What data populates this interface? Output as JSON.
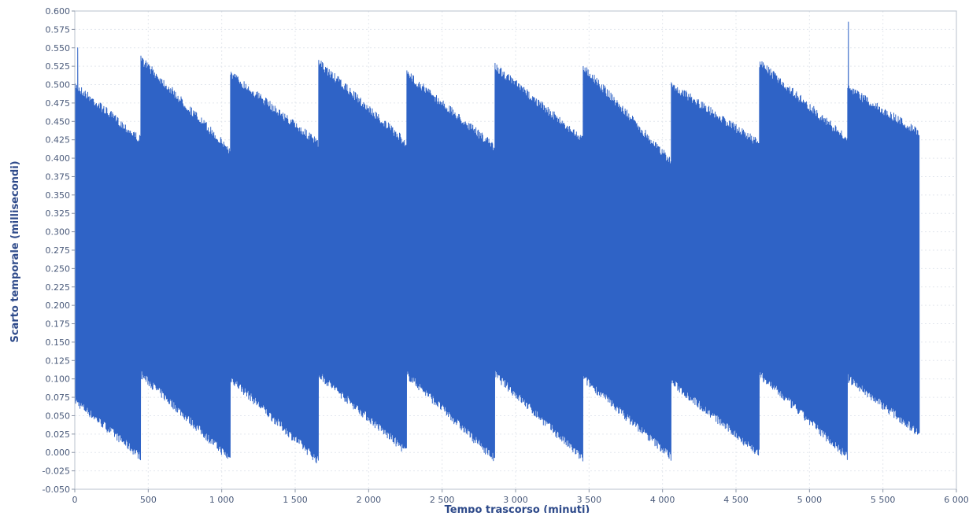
{
  "chart_data": {
    "type": "line",
    "title": "",
    "xlabel": "Tempo trascorso (minuti)",
    "ylabel": "Scarto temporale (millisecondi)",
    "xlim": [
      0,
      6000
    ],
    "ylim": [
      -0.05,
      0.6
    ],
    "x_ticks": [
      0,
      500,
      1000,
      1500,
      2000,
      2500,
      3000,
      3500,
      4000,
      4500,
      5000,
      5500,
      6000
    ],
    "x_tick_labels": [
      "0",
      "500",
      "1 000",
      "1 500",
      "2 000",
      "2 500",
      "3 000",
      "3 500",
      "4 000",
      "4 500",
      "5 000",
      "5 500",
      "6 000"
    ],
    "y_ticks": [
      -0.05,
      -0.025,
      0,
      0.025,
      0.05,
      0.075,
      0.1,
      0.125,
      0.15,
      0.175,
      0.2,
      0.225,
      0.25,
      0.275,
      0.3,
      0.325,
      0.35,
      0.375,
      0.4,
      0.425,
      0.45,
      0.475,
      0.5,
      0.525,
      0.55,
      0.575,
      0.6
    ],
    "y_tick_labels": [
      "-0.050",
      "-0.025",
      "0.000",
      "0.025",
      "0.050",
      "0.075",
      "0.100",
      "0.125",
      "0.150",
      "0.175",
      "0.200",
      "0.225",
      "0.250",
      "0.275",
      "0.300",
      "0.325",
      "0.350",
      "0.375",
      "0.400",
      "0.425",
      "0.450",
      "0.475",
      "0.500",
      "0.525",
      "0.550",
      "0.575",
      "0.600"
    ],
    "grid": "dashed-light",
    "series_color": "#2f63c6",
    "series": [
      {
        "envelope": [
          {
            "x_start": 0,
            "x_end": 450,
            "upper_start": 0.505,
            "upper_end": 0.43,
            "lower_start": 0.065,
            "lower_end": -0.012
          },
          {
            "x_start": 450,
            "x_end": 1060,
            "upper_start": 0.54,
            "upper_end": 0.415,
            "lower_start": 0.1,
            "lower_end": -0.015
          },
          {
            "x_start": 1060,
            "x_end": 1660,
            "upper_start": 0.52,
            "upper_end": 0.425,
            "lower_start": 0.095,
            "lower_end": -0.018
          },
          {
            "x_start": 1660,
            "x_end": 2260,
            "upper_start": 0.535,
            "upper_end": 0.425,
            "lower_start": 0.1,
            "lower_end": -0.005
          },
          {
            "x_start": 2260,
            "x_end": 2860,
            "upper_start": 0.52,
            "upper_end": 0.42,
            "lower_start": 0.1,
            "lower_end": -0.015
          },
          {
            "x_start": 2860,
            "x_end": 3460,
            "upper_start": 0.53,
            "upper_end": 0.43,
            "lower_start": 0.1,
            "lower_end": -0.015
          },
          {
            "x_start": 3460,
            "x_end": 4060,
            "upper_start": 0.53,
            "upper_end": 0.4,
            "lower_start": 0.095,
            "lower_end": -0.012
          },
          {
            "x_start": 4060,
            "x_end": 4660,
            "upper_start": 0.505,
            "upper_end": 0.425,
            "lower_start": 0.09,
            "lower_end": -0.008
          },
          {
            "x_start": 4660,
            "x_end": 5260,
            "upper_start": 0.535,
            "upper_end": 0.43,
            "lower_start": 0.1,
            "lower_end": -0.012
          },
          {
            "x_start": 5260,
            "x_end": 5750,
            "upper_start": 0.5,
            "upper_end": 0.44,
            "lower_start": 0.095,
            "lower_end": 0.02
          }
        ],
        "peaks": [
          {
            "x": 20,
            "y": 0.55
          },
          {
            "x": 5265,
            "y": 0.585
          }
        ]
      }
    ]
  }
}
